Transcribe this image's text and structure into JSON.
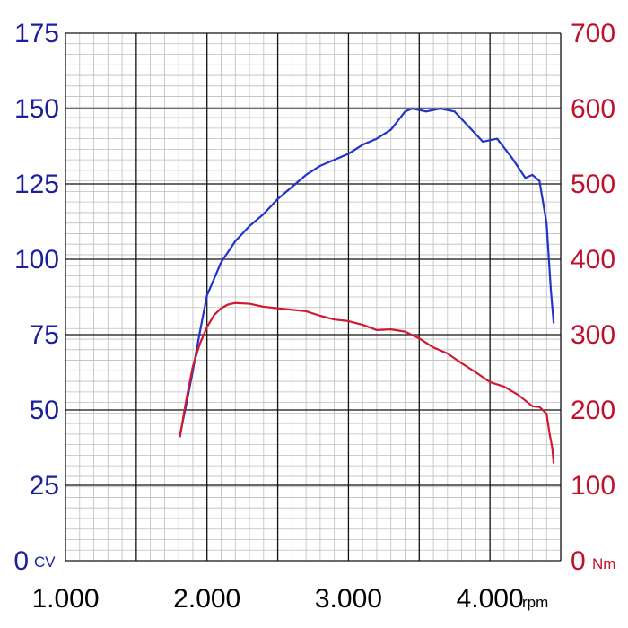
{
  "chart_data": {
    "type": "line",
    "title": "",
    "xlabel": "",
    "x_unit": "rpm",
    "xlim": [
      1000,
      4500
    ],
    "x_ticks": [
      1000,
      2000,
      3000,
      4000
    ],
    "x_tick_labels": [
      "1.000",
      "2.000",
      "3.000",
      "4.000"
    ],
    "y_left": {
      "unit": "CV",
      "ylim": [
        0,
        175
      ],
      "ticks": [
        0,
        25,
        50,
        75,
        100,
        125,
        150,
        175
      ],
      "tick_labels": [
        "0",
        "25",
        "50",
        "75",
        "100",
        "125",
        "150",
        "175"
      ],
      "color": "#1a1fa0"
    },
    "y_right": {
      "unit": "Nm",
      "ylim": [
        0,
        700
      ],
      "ticks": [
        0,
        100,
        200,
        300,
        400,
        500,
        600,
        700
      ],
      "tick_labels": [
        "0",
        "100",
        "200",
        "300",
        "400",
        "500",
        "600",
        "700"
      ],
      "color": "#c0102a"
    },
    "grid": true,
    "series": [
      {
        "axis": "left",
        "color": "#2233c8",
        "x": [
          1810,
          1850,
          1900,
          1950,
          2000,
          2100,
          2200,
          2300,
          2400,
          2500,
          2600,
          2700,
          2800,
          2900,
          3000,
          3100,
          3200,
          3300,
          3400,
          3450,
          3550,
          3650,
          3750,
          3850,
          3950,
          4050,
          4150,
          4250,
          4300,
          4350,
          4400,
          4430,
          4450
        ],
        "values": [
          42,
          51,
          63,
          76,
          88,
          99,
          106,
          111,
          115,
          120,
          124,
          128,
          131,
          133,
          135,
          138,
          140,
          143,
          149,
          150,
          149,
          150,
          149,
          144,
          139,
          140,
          134,
          127,
          128,
          126,
          112,
          90,
          79
        ]
      },
      {
        "axis": "right",
        "color": "#d01a30",
        "x": [
          1810,
          1850,
          1900,
          1950,
          2000,
          2050,
          2100,
          2150,
          2200,
          2300,
          2400,
          2500,
          2600,
          2700,
          2800,
          2900,
          3000,
          3100,
          3200,
          3300,
          3400,
          3500,
          3600,
          3700,
          3800,
          3900,
          4000,
          4100,
          4200,
          4300,
          4350,
          4400,
          4420,
          4440,
          4450
        ],
        "values": [
          165,
          210,
          258,
          288,
          310,
          326,
          335,
          340,
          342,
          341,
          337,
          335,
          333,
          331,
          325,
          320,
          318,
          313,
          306,
          307,
          304,
          295,
          283,
          275,
          262,
          250,
          237,
          231,
          220,
          205,
          204,
          195,
          170,
          150,
          130
        ]
      }
    ]
  }
}
